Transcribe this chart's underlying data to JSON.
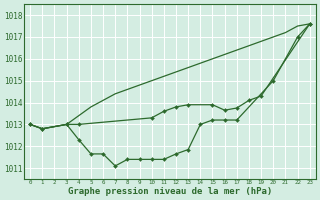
{
  "line1_x": [
    0,
    1,
    3,
    4,
    5,
    6,
    7,
    8,
    9,
    10,
    11,
    12,
    13,
    14,
    15,
    16,
    17,
    20,
    22,
    23
  ],
  "line1_y": [
    1013.0,
    1012.8,
    1013.0,
    1012.3,
    1011.65,
    1011.65,
    1011.1,
    1011.4,
    1011.4,
    1011.4,
    1011.4,
    1011.65,
    1011.85,
    1013.0,
    1013.2,
    1013.2,
    1013.2,
    1015.0,
    1017.0,
    1017.6
  ],
  "line2_x": [
    0,
    1,
    3,
    4,
    10,
    11,
    12,
    13,
    15,
    16,
    17,
    18,
    19,
    23
  ],
  "line2_y": [
    1013.0,
    1012.8,
    1013.0,
    1013.0,
    1013.3,
    1013.6,
    1013.8,
    1013.9,
    1013.9,
    1013.65,
    1013.75,
    1014.1,
    1014.3,
    1017.6
  ],
  "line3_x": [
    0,
    1,
    3,
    4,
    5,
    6,
    7,
    8,
    9,
    10,
    11,
    12,
    13,
    14,
    15,
    16,
    17,
    18,
    19,
    20,
    21,
    22,
    23
  ],
  "line3_y": [
    1013.0,
    1012.8,
    1013.0,
    1013.4,
    1013.8,
    1014.1,
    1014.4,
    1014.6,
    1014.8,
    1015.0,
    1015.2,
    1015.4,
    1015.6,
    1015.8,
    1016.0,
    1016.2,
    1016.4,
    1016.6,
    1016.8,
    1017.0,
    1017.2,
    1017.5,
    1017.6
  ],
  "color": "#2d6a2d",
  "bg_color": "#d4ede2",
  "ylabel_values": [
    1011,
    1012,
    1013,
    1014,
    1015,
    1016,
    1017,
    1018
  ],
  "xlabel_label": "Graphe pression niveau de la mer (hPa)",
  "ylim": [
    1010.5,
    1018.5
  ],
  "xlim": [
    -0.5,
    23.5
  ]
}
